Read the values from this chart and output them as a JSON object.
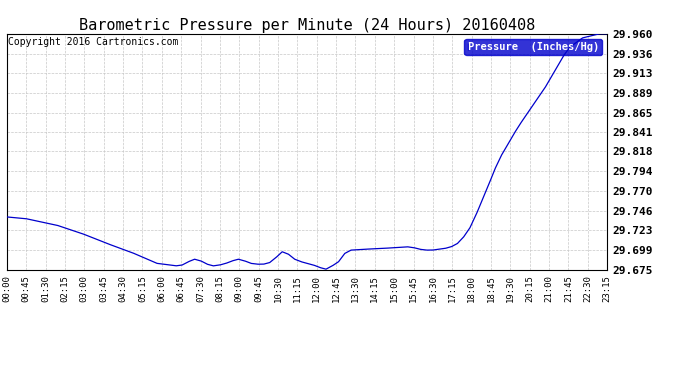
{
  "title": "Barometric Pressure per Minute (24 Hours) 20160408",
  "copyright": "Copyright 2016 Cartronics.com",
  "legend_label": "Pressure  (Inches/Hg)",
  "line_color": "#0000cc",
  "bg_color": "#ffffff",
  "grid_color": "#c8c8c8",
  "ylim": [
    29.675,
    29.96
  ],
  "yticks": [
    29.675,
    29.699,
    29.723,
    29.746,
    29.77,
    29.794,
    29.818,
    29.841,
    29.865,
    29.889,
    29.913,
    29.936,
    29.96
  ],
  "xtick_labels": [
    "00:00",
    "00:45",
    "01:30",
    "02:15",
    "03:00",
    "03:45",
    "04:30",
    "05:15",
    "06:00",
    "06:45",
    "07:30",
    "08:15",
    "09:00",
    "09:45",
    "10:30",
    "11:15",
    "12:00",
    "12:45",
    "13:30",
    "14:15",
    "15:00",
    "15:45",
    "16:30",
    "17:15",
    "18:00",
    "18:45",
    "19:30",
    "20:15",
    "21:00",
    "21:45",
    "22:30",
    "23:15"
  ],
  "title_fontsize": 11,
  "copyright_fontsize": 7,
  "legend_fontsize": 7.5,
  "ytick_fontsize": 8,
  "xtick_fontsize": 6.5
}
